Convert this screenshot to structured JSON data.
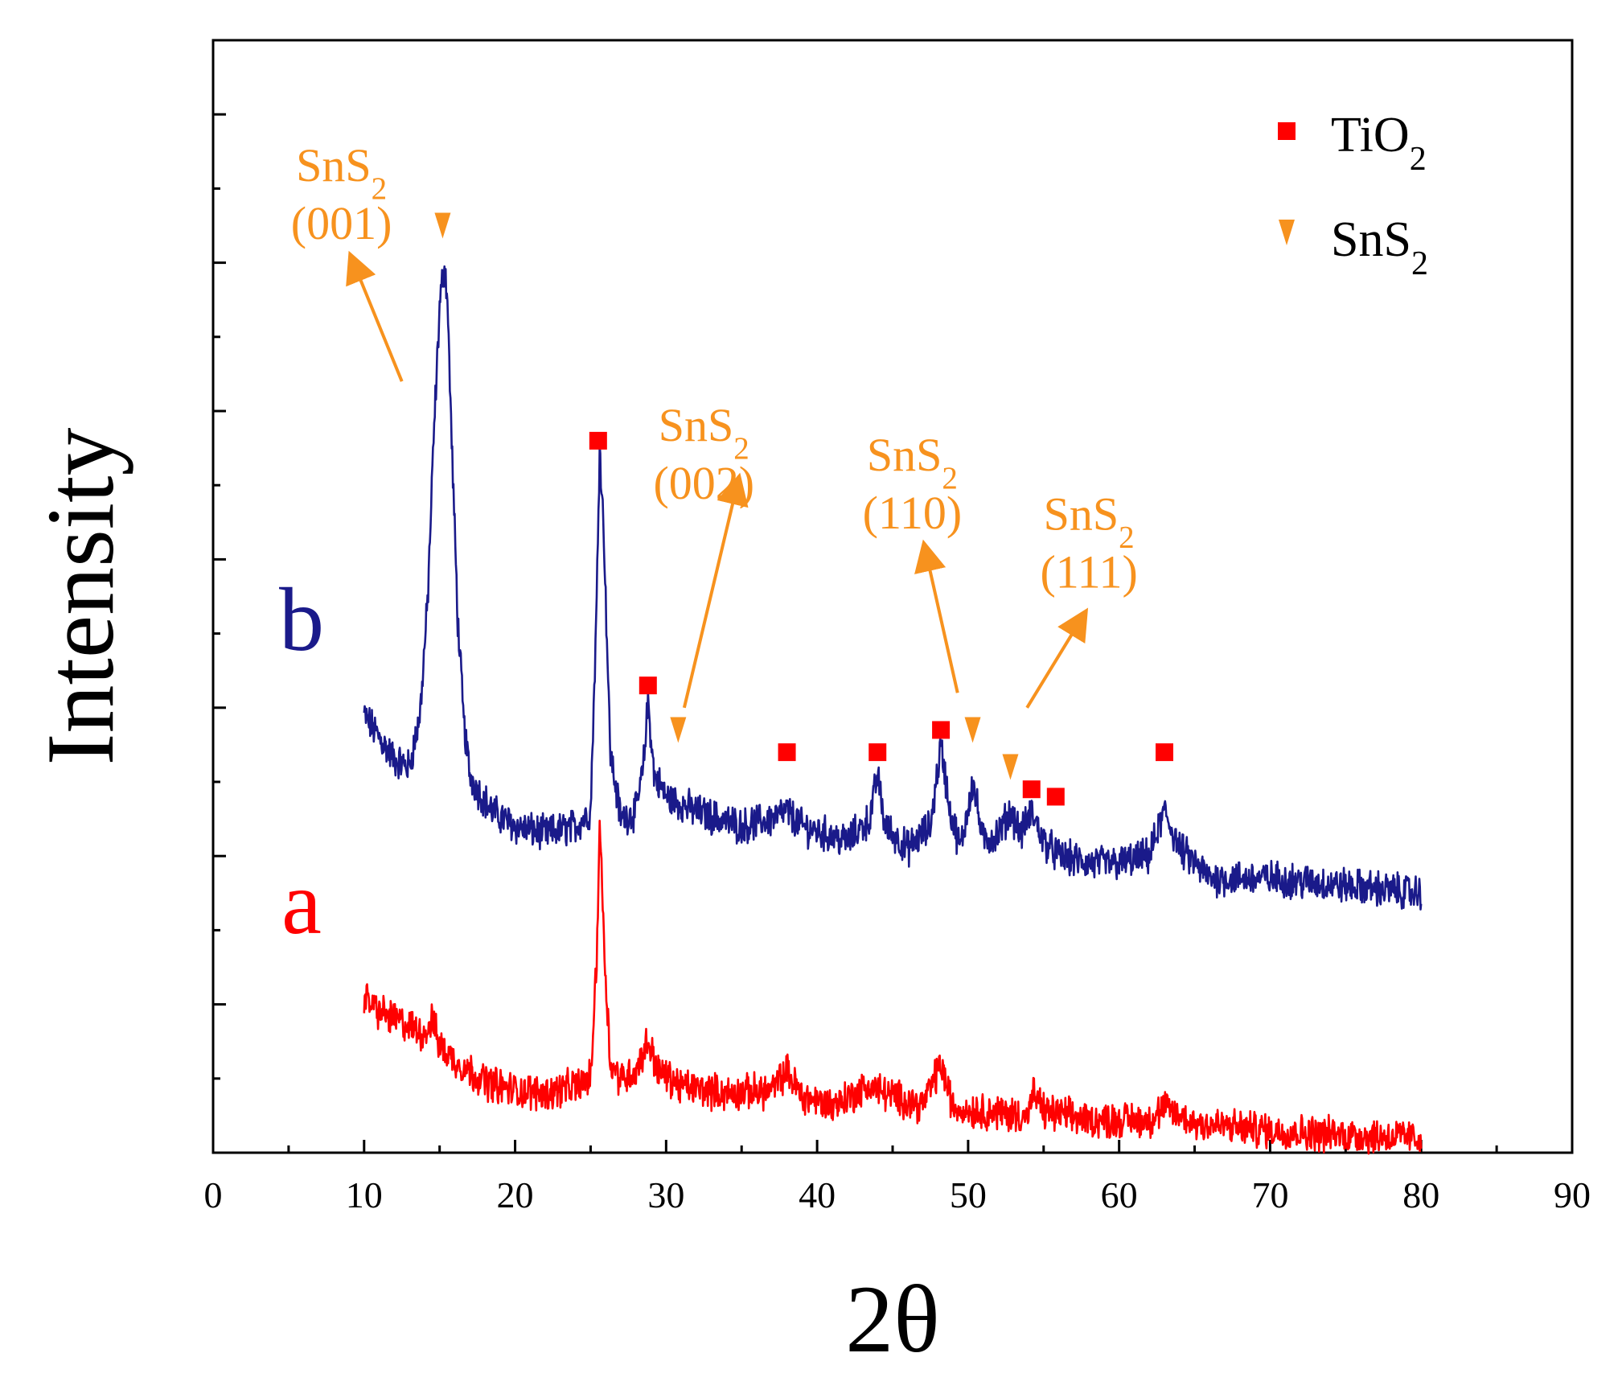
{
  "chart_data": {
    "type": "line",
    "title": "",
    "xlabel": "2θ",
    "ylabel": "Intensity",
    "xlim": [
      0,
      90
    ],
    "ylim": [
      0,
      7.5
    ],
    "x_ticks": [
      0,
      10,
      20,
      30,
      40,
      50,
      60,
      70,
      80,
      90
    ],
    "y_tick_labels": "none",
    "grid": false,
    "legend": {
      "placement": "top-right",
      "entries": [
        {
          "marker": "square",
          "base": "TiO",
          "sub": "2",
          "color": "#ff0000"
        },
        {
          "marker": "triangle-down",
          "base": "SnS",
          "sub": "2",
          "color": "#f7921e"
        }
      ]
    },
    "series": [
      {
        "name": "b",
        "color": "#1a1a8a",
        "x": [
          10,
          11,
          12,
          13,
          13.7,
          14.2,
          14.6,
          15.0,
          15.3,
          15.5,
          15.8,
          16.2,
          16.6,
          17.0,
          17.5,
          18.5,
          20,
          22,
          24,
          25,
          25.4,
          25.6,
          25.9,
          26.3,
          27,
          28,
          28.5,
          28.8,
          29.2,
          30,
          32,
          35,
          37,
          38,
          39,
          42,
          43.5,
          44,
          44.5,
          46,
          47.5,
          48.2,
          48.8,
          49.5,
          50.3,
          51,
          52,
          52.8,
          53.5,
          54.2,
          55,
          56,
          58,
          60,
          62,
          63,
          64,
          66,
          70,
          75,
          80
        ],
        "y": [
          2.95,
          2.8,
          2.65,
          2.6,
          2.95,
          3.7,
          4.8,
          5.7,
          6.0,
          5.8,
          4.8,
          3.6,
          2.9,
          2.55,
          2.45,
          2.3,
          2.2,
          2.15,
          2.2,
          2.3,
          3.7,
          4.8,
          4.1,
          2.7,
          2.25,
          2.3,
          2.6,
          3.05,
          2.55,
          2.4,
          2.3,
          2.2,
          2.25,
          2.3,
          2.2,
          2.1,
          2.25,
          2.55,
          2.2,
          2.05,
          2.2,
          2.75,
          2.3,
          2.05,
          2.5,
          2.1,
          2.15,
          2.3,
          2.15,
          2.3,
          2.1,
          2.0,
          1.95,
          1.95,
          2.0,
          2.3,
          2.05,
          1.85,
          1.85,
          1.8,
          1.75
        ]
      },
      {
        "name": "a",
        "color": "#ff0000",
        "x": [
          10,
          11,
          12,
          13,
          14,
          14.5,
          15,
          16,
          18,
          20,
          22,
          24,
          25,
          25.4,
          25.6,
          25.9,
          26.3,
          27,
          28,
          28.8,
          29.5,
          31,
          34,
          37,
          38,
          39,
          41,
          43.5,
          45,
          47,
          48.2,
          49,
          51,
          54,
          54.3,
          55,
          58,
          62,
          63,
          65,
          70,
          75,
          80
        ],
        "y": [
          1.05,
          0.95,
          0.9,
          0.85,
          0.8,
          0.9,
          0.72,
          0.62,
          0.48,
          0.42,
          0.4,
          0.45,
          0.5,
          1.3,
          2.25,
          1.4,
          0.6,
          0.5,
          0.55,
          0.75,
          0.55,
          0.45,
          0.4,
          0.42,
          0.55,
          0.38,
          0.32,
          0.45,
          0.38,
          0.32,
          0.6,
          0.3,
          0.28,
          0.25,
          0.4,
          0.28,
          0.22,
          0.22,
          0.3,
          0.2,
          0.15,
          0.12,
          0.1
        ]
      }
    ],
    "series_labels": [
      {
        "text": "b",
        "color": "#1a1a8a"
      },
      {
        "text": "a",
        "color": "#ff0000"
      }
    ],
    "tio2_markers": [
      {
        "x": 25.5,
        "y": 4.8
      },
      {
        "x": 28.8,
        "y": 3.15
      },
      {
        "x": 38.0,
        "y": 2.7
      },
      {
        "x": 44.0,
        "y": 2.7
      },
      {
        "x": 48.2,
        "y": 2.85
      },
      {
        "x": 54.2,
        "y": 2.45
      },
      {
        "x": 55.8,
        "y": 2.4
      },
      {
        "x": 63.0,
        "y": 2.7
      }
    ],
    "sns2_markers": [
      {
        "x": 15.2,
        "y": 6.25
      },
      {
        "x": 30.8,
        "y": 2.85
      },
      {
        "x": 50.3,
        "y": 2.85
      },
      {
        "x": 52.8,
        "y": 2.6
      }
    ],
    "annotations": [
      {
        "base": "SnS",
        "sub": "2",
        "plane": "(001)",
        "label_at": [
          8.5,
          6.55
        ],
        "arrow_from": [
          12.5,
          5.2
        ],
        "arrow_to": [
          9.3,
          6.0
        ]
      },
      {
        "base": "SnS",
        "sub": "2",
        "plane": "(002)",
        "label_at": [
          32.5,
          4.8
        ],
        "arrow_from": [
          31.2,
          3.0
        ],
        "arrow_to": [
          34.7,
          4.5
        ]
      },
      {
        "base": "SnS",
        "sub": "2",
        "plane": "(110)",
        "label_at": [
          46.3,
          4.6
        ],
        "arrow_from": [
          49.3,
          3.95
        ],
        "arrow_to": [
          47.2,
          3.95
        ],
        "arrow_from_y_override": 3.1,
        "arrow_to_y_override": 4.05
      },
      {
        "base": "SnS",
        "sub": "2",
        "plane": "(111)",
        "label_at": [
          58.0,
          4.2
        ],
        "arrow_from": [
          53.9,
          3.0
        ],
        "arrow_to": [
          57.5,
          3.6
        ]
      }
    ],
    "colors": {
      "axis": "#000000",
      "annotation": "#f7921e",
      "tio2_marker": "#ff0000",
      "sns2_marker": "#f7921e"
    }
  }
}
